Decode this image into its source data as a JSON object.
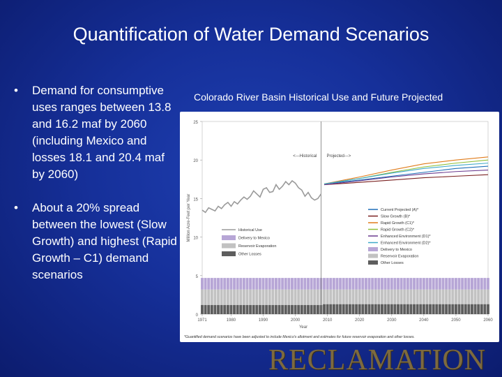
{
  "slide": {
    "title": "Quantification of Water Demand Scenarios",
    "bullets": [
      "Demand for consumptive uses ranges between 13.8 and 16.2 maf by 2060 (including Mexico and losses 18.1 and 20.4 maf by 2060)",
      "About a 20% spread between the lowest (Slow Growth) and highest (Rapid Growth – C1) demand scenarios"
    ],
    "bullet_glyph": "•",
    "chart_heading": "Colorado River Basin Historical Use and Future Projected",
    "logo_text": "RECLAMATION"
  },
  "chart_data": {
    "type": "line",
    "xlabel": "Year",
    "ylabel": "Million Acre-Feet per Year",
    "xlim": [
      1971,
      2060
    ],
    "ylim": [
      0,
      25
    ],
    "x_ticks": [
      "1971",
      "1980",
      "1990",
      "2000",
      "2010",
      "2020",
      "2030",
      "2040",
      "2050",
      "2060"
    ],
    "y_ticks": [
      "0",
      "5",
      "10",
      "15",
      "20",
      "25"
    ],
    "divider_year": 2008,
    "annotations": [
      "<---Historical",
      "Projected--->"
    ],
    "footnote": "*Guantified demand scenarios have been adjusted to include Mexico's allotment and estimates for future reservoir evaporation and other losses.",
    "historical_use": {
      "name": "Historical Use",
      "color": "#9a9a9a",
      "x": [
        1971,
        1972,
        1973,
        1974,
        1975,
        1976,
        1977,
        1978,
        1979,
        1980,
        1981,
        1982,
        1983,
        1984,
        1985,
        1986,
        1987,
        1988,
        1989,
        1990,
        1991,
        1992,
        1993,
        1994,
        1995,
        1996,
        1997,
        1998,
        1999,
        2000,
        2001,
        2002,
        2003,
        2004,
        2005,
        2006,
        2007,
        2008
      ],
      "y": [
        13.5,
        13.2,
        13.8,
        13.6,
        13.4,
        14.0,
        13.7,
        14.2,
        14.5,
        14.0,
        14.6,
        14.3,
        14.8,
        15.2,
        14.9,
        15.3,
        16.0,
        15.6,
        15.2,
        16.2,
        16.4,
        15.8,
        15.9,
        16.8,
        16.2,
        16.6,
        17.2,
        16.8,
        17.3,
        17.0,
        16.4,
        16.1,
        15.3,
        15.8,
        15.1,
        14.8,
        15.0,
        15.6
      ]
    },
    "projections": [
      {
        "name": "Current Projected (A)*",
        "color": "#1f6fb8",
        "x": [
          2009,
          2020,
          2030,
          2040,
          2050,
          2060
        ],
        "y": [
          16.9,
          17.4,
          17.9,
          18.4,
          18.9,
          19.2
        ]
      },
      {
        "name": "Slow Growth (B)*",
        "color": "#7a2020",
        "x": [
          2009,
          2020,
          2030,
          2040,
          2050,
          2060
        ],
        "y": [
          16.8,
          17.1,
          17.4,
          17.7,
          17.9,
          18.1
        ]
      },
      {
        "name": "Rapid Growth (C1)*",
        "color": "#e07b1a",
        "x": [
          2009,
          2020,
          2030,
          2040,
          2050,
          2060
        ],
        "y": [
          16.9,
          17.8,
          18.7,
          19.5,
          20.0,
          20.4
        ]
      },
      {
        "name": "Rapid Growth (C2)*",
        "color": "#8fbf3a",
        "x": [
          2009,
          2020,
          2030,
          2040,
          2050,
          2060
        ],
        "y": [
          16.9,
          17.6,
          18.4,
          19.1,
          19.6,
          20.0
        ]
      },
      {
        "name": "Enhanced Environment (D1)*",
        "color": "#6b3a8f",
        "x": [
          2009,
          2020,
          2030,
          2040,
          2050,
          2060
        ],
        "y": [
          16.8,
          17.3,
          17.8,
          18.2,
          18.5,
          18.7
        ]
      },
      {
        "name": "Enhanced Environment (D2)*",
        "color": "#3fa9c9",
        "x": [
          2009,
          2020,
          2030,
          2040,
          2050,
          2060
        ],
        "y": [
          16.9,
          17.6,
          18.3,
          18.9,
          19.3,
          19.6
        ]
      }
    ],
    "stack_legend": [
      {
        "name": "Delivery to Mexico",
        "color": "#b7a6d6"
      },
      {
        "name": "Reservoir Evaporation",
        "color": "#c2c2c2"
      },
      {
        "name": "Other Losses",
        "color": "#5e5e5e"
      }
    ],
    "historical_stack_legend_order": [
      "Historical Use",
      "Delivery to Mexico",
      "Reservoir Evaporation",
      "Other Losses"
    ],
    "stack_values": {
      "historical_years": [
        1971,
        2008
      ],
      "other_losses": 1.2,
      "reservoir_evaporation": 2.0,
      "delivery_to_mexico": 1.5,
      "projected_other_losses": 1.3,
      "projected_reservoir_evaporation": 1.9,
      "projected_delivery_to_mexico": 1.5
    }
  }
}
